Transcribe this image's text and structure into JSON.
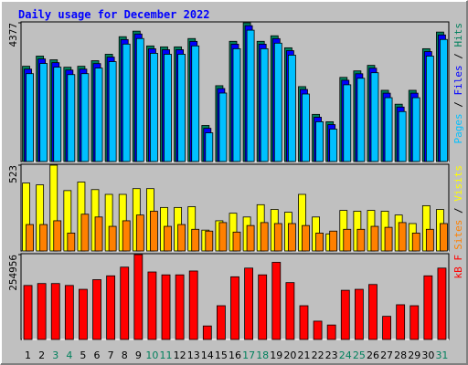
{
  "chart_data": [
    {
      "type": "bar",
      "title": "Daily usage for December 2022",
      "legend_separator": " / ",
      "ylim": [
        0,
        4377
      ],
      "yticks": [
        4377
      ],
      "series": [
        {
          "name": "Hits",
          "color": "#00805c",
          "values": [
            3006,
            3327,
            3210,
            2976,
            3006,
            3181,
            3385,
            3939,
            4114,
            3648,
            3618,
            3618,
            3881,
            1138,
            2393,
            3793,
            4377,
            3793,
            3968,
            3589,
            2364,
            1488,
            1255,
            2655,
            2860,
            3035,
            2247,
            1809,
            2247,
            3560,
            4085
          ]
        },
        {
          "name": "Files",
          "color": "#0000ff",
          "values": [
            2916,
            3237,
            3120,
            2886,
            2916,
            3091,
            3295,
            3849,
            4024,
            3558,
            3528,
            3528,
            3791,
            1048,
            2303,
            3703,
            4287,
            3703,
            3878,
            3499,
            2274,
            1398,
            1165,
            2565,
            2770,
            2945,
            2157,
            1719,
            2157,
            3470,
            3995
          ]
        },
        {
          "name": "Pages",
          "color": "#00c0ff",
          "values": [
            2773,
            3094,
            2977,
            2743,
            2773,
            2948,
            3152,
            3706,
            3881,
            3415,
            3385,
            3385,
            3648,
            905,
            2160,
            3560,
            4144,
            3560,
            3735,
            3356,
            2131,
            1255,
            1022,
            2422,
            2627,
            2802,
            2014,
            1576,
            2014,
            3327,
            3852
          ]
        }
      ]
    },
    {
      "type": "bar",
      "legend_separator": " / ",
      "ylim": [
        0,
        523
      ],
      "yticks": [
        523
      ],
      "series": [
        {
          "name": "Visits",
          "color": "#ffff00",
          "values": [
            414,
            403,
            523,
            368,
            420,
            374,
            345,
            345,
            380,
            380,
            265,
            265,
            270,
            127,
            184,
            230,
            207,
            282,
            253,
            236,
            345,
            207,
            104,
            247,
            242,
            247,
            242,
            219,
            167,
            276,
            253
          ]
        },
        {
          "name": "Sites",
          "color": "#ff8000",
          "values": [
            161,
            161,
            184,
            109,
            224,
            207,
            150,
            184,
            219,
            242,
            150,
            161,
            132,
            121,
            173,
            115,
            155,
            173,
            167,
            167,
            155,
            109,
            121,
            132,
            132,
            150,
            144,
            173,
            109,
            132,
            167
          ]
        }
      ]
    },
    {
      "type": "bar",
      "ylim": [
        0,
        254956
      ],
      "yticks": [
        254956
      ],
      "categories": [
        "1",
        "2",
        "3",
        "4",
        "5",
        "6",
        "7",
        "8",
        "9",
        "10",
        "11",
        "12",
        "13",
        "14",
        "15",
        "16",
        "17",
        "18",
        "19",
        "20",
        "21",
        "22",
        "23",
        "24",
        "25",
        "26",
        "27",
        "28",
        "29",
        "30",
        "31"
      ],
      "category_colors": [
        "#000000",
        "#000000",
        "#00805c",
        "#00805c",
        "#000000",
        "#000000",
        "#000000",
        "#000000",
        "#000000",
        "#00805c",
        "#00805c",
        "#000000",
        "#000000",
        "#000000",
        "#000000",
        "#000000",
        "#00805c",
        "#00805c",
        "#000000",
        "#000000",
        "#000000",
        "#000000",
        "#000000",
        "#00805c",
        "#00805c",
        "#000000",
        "#000000",
        "#000000",
        "#000000",
        "#000000",
        "#00805c"
      ],
      "series": [
        {
          "name": "kB F",
          "color": "#ff0000",
          "values": [
            162232,
            168026,
            168026,
            162232,
            150644,
            179614,
            191202,
            217275,
            254956,
            202790,
            194099,
            194099,
            205687,
            40558,
            101395,
            188305,
            214378,
            194099,
            231760,
            170923,
            101395,
            55043,
            43455,
            147747,
            150644,
            165129,
            69528,
            104292,
            101395,
            191202,
            214378
          ]
        }
      ]
    }
  ]
}
